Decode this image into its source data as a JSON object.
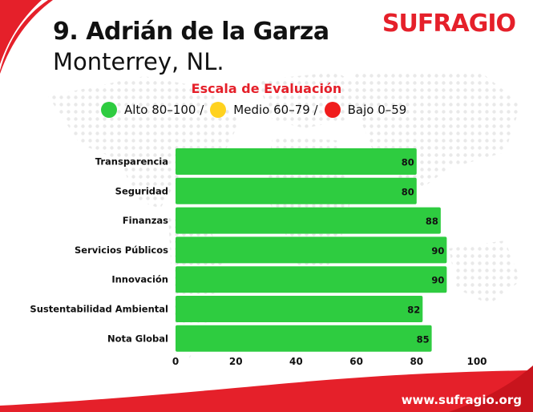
{
  "header": {
    "title": "9. Adrián de la Garza",
    "subtitle": "Monterrey, NL.",
    "brand": "SUFRAGIO"
  },
  "legend": {
    "title": "Escala de Evaluación",
    "items": [
      {
        "label": "Alto 80–100 /",
        "color": "#2ecc40"
      },
      {
        "label": "Medio 60–79 /",
        "color": "#ffd21f"
      },
      {
        "label": "Bajo 0–59",
        "color": "#f01c1c"
      }
    ]
  },
  "chart_data": {
    "type": "bar",
    "orientation": "horizontal",
    "categories": [
      "Transparencia",
      "Seguridad",
      "Finanzas",
      "Servicios Públicos",
      "Innovación",
      "Sustentabilidad Ambiental",
      "Nota Global"
    ],
    "values": [
      80,
      80,
      88,
      90,
      90,
      82,
      85
    ],
    "xlim": [
      0,
      100
    ],
    "xticks": [
      0,
      20,
      40,
      60,
      80,
      100
    ],
    "bar_color": "#2ecc40",
    "data_labels": true,
    "grid": false
  },
  "footer": {
    "website": "www.sufragio.org"
  },
  "colors": {
    "brand_red": "#e5202a",
    "bar_green": "#2ecc40"
  }
}
